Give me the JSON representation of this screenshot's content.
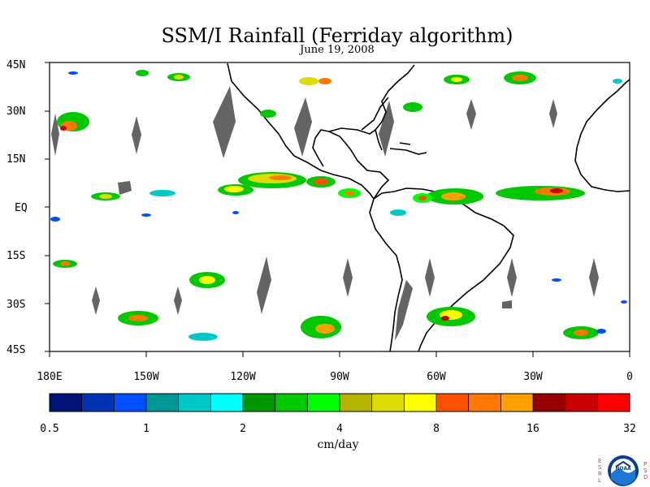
{
  "title": "SSM/I Rainfall (Ferriday algorithm)",
  "date": "June 19, 2008",
  "lat_labels": [
    "45N",
    "30N",
    "15N",
    "EQ",
    "15S",
    "30S",
    "45S"
  ],
  "lon_labels": [
    "180E",
    "150W",
    "120W",
    "90W",
    "60W",
    "30W",
    "0"
  ],
  "colorbar": {
    "tick_labels": [
      "0.5",
      "1",
      "2",
      "4",
      "8",
      "16",
      "32"
    ],
    "units": "cm/day",
    "colors": [
      "#001478",
      "#0032b4",
      "#0050ff",
      "#009696",
      "#00c8c8",
      "#00ffff",
      "#009600",
      "#00c800",
      "#00ff00",
      "#b4b400",
      "#dcdc00",
      "#ffff00",
      "#ff5000",
      "#ff7800",
      "#ffa000",
      "#960000",
      "#c80000",
      "#ff0000"
    ]
  },
  "logo": {
    "text": "NOAA",
    "left_letters": "ESRL",
    "right_letters": "PSD"
  },
  "map_colors": {
    "land_outline": "#000000",
    "no_data": "#646464",
    "background": "#ffffff"
  }
}
